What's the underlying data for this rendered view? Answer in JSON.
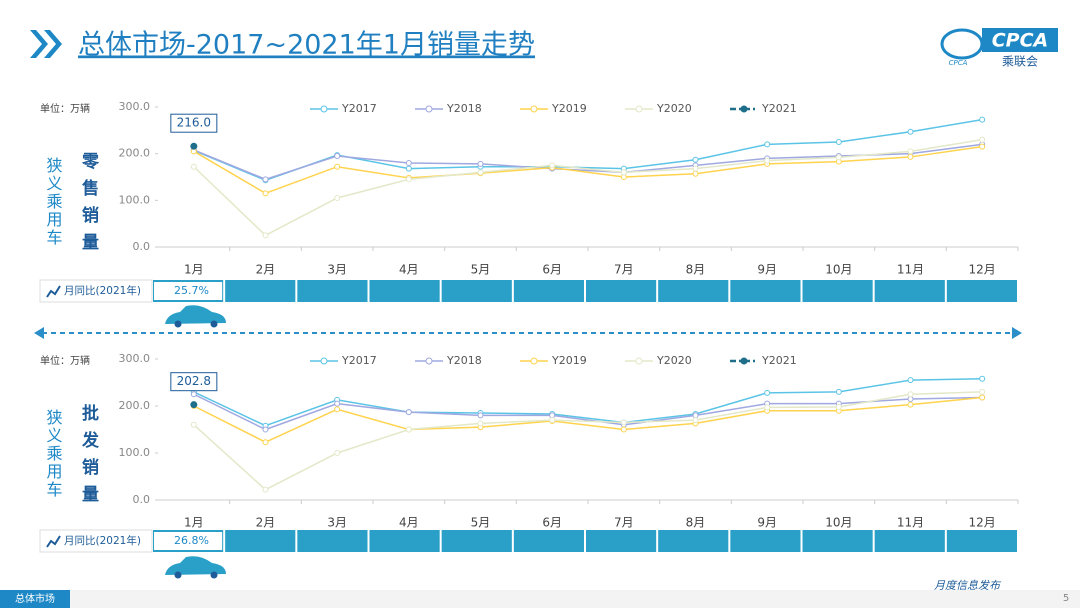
{
  "header": {
    "title": "总体市场-2017~2021年1月销量走势",
    "logo": "CPCA",
    "logo_sub": "乘联会",
    "logo_small": "CPCA"
  },
  "footer": {
    "tab": "总体市场",
    "note": "月度信息发布",
    "page": "5"
  },
  "chart_data": [
    {
      "type": "line",
      "unit": "单位：万辆",
      "side_label": "狭义乘用车",
      "metric_label": "零售销量",
      "yoy_label": "月同比(2021年)",
      "yoy_value": "25.7%",
      "categories": [
        "1月",
        "2月",
        "3月",
        "4月",
        "5月",
        "6月",
        "7月",
        "8月",
        "9月",
        "10月",
        "11月",
        "12月"
      ],
      "ylim": [
        0,
        300
      ],
      "yticks": [
        {
          "value": 0,
          "label": "0.0"
        },
        {
          "value": 100,
          "label": "100.0"
        },
        {
          "value": 200,
          "label": "200.0"
        },
        {
          "value": 300,
          "label": "300.0"
        }
      ],
      "legend": "top",
      "series": [
        {
          "name": "Y2017",
          "color": "#5bc4e6",
          "values": [
            207,
            143,
            197,
            168,
            172,
            172,
            168,
            187,
            220,
            225,
            247,
            273
          ]
        },
        {
          "name": "Y2018",
          "color": "#9fa8e0",
          "values": [
            208,
            145,
            195,
            180,
            178,
            168,
            160,
            175,
            190,
            195,
            200,
            220
          ]
        },
        {
          "name": "Y2019",
          "color": "#ffd34d",
          "values": [
            205,
            115,
            172,
            148,
            158,
            170,
            150,
            157,
            178,
            183,
            193,
            215
          ]
        },
        {
          "name": "Y2020",
          "color": "#e3e8c8",
          "values": [
            172,
            25,
            105,
            145,
            160,
            175,
            160,
            168,
            185,
            192,
            205,
            230
          ]
        },
        {
          "name": "Y2021",
          "color": "#1f6f8b",
          "dashed": true,
          "values": [
            216.0,
            null,
            null,
            null,
            null,
            null,
            null,
            null,
            null,
            null,
            null,
            null
          ],
          "value_labels": [
            "216.0",
            null,
            null,
            null,
            null,
            null,
            null,
            null,
            null,
            null,
            null,
            null
          ]
        }
      ]
    },
    {
      "type": "line",
      "unit": "单位：万辆",
      "side_label": "狭义乘用车",
      "metric_label": "批发销量",
      "yoy_label": "月同比(2021年)",
      "yoy_value": "26.8%",
      "categories": [
        "1月",
        "2月",
        "3月",
        "4月",
        "5月",
        "6月",
        "7月",
        "8月",
        "9月",
        "10月",
        "11月",
        "12月"
      ],
      "ylim": [
        0,
        300
      ],
      "yticks": [
        {
          "value": 0,
          "label": "0.0"
        },
        {
          "value": 100,
          "label": "100.0"
        },
        {
          "value": 200,
          "label": "200.0"
        },
        {
          "value": 300,
          "label": "300.0"
        }
      ],
      "legend": "top",
      "series": [
        {
          "name": "Y2017",
          "color": "#5bc4e6",
          "values": [
            230,
            158,
            213,
            187,
            185,
            183,
            165,
            183,
            228,
            230,
            255,
            258
          ]
        },
        {
          "name": "Y2018",
          "color": "#9fa8e0",
          "values": [
            225,
            150,
            205,
            187,
            180,
            180,
            160,
            180,
            205,
            205,
            215,
            218
          ]
        },
        {
          "name": "Y2019",
          "color": "#ffd34d",
          "values": [
            200,
            123,
            193,
            150,
            155,
            168,
            150,
            163,
            190,
            190,
            203,
            218
          ]
        },
        {
          "name": "Y2020",
          "color": "#e3e8c8",
          "values": [
            160,
            22,
            100,
            150,
            163,
            170,
            165,
            170,
            197,
            198,
            225,
            230
          ]
        },
        {
          "name": "Y2021",
          "color": "#1f6f8b",
          "dashed": true,
          "values": [
            202.8,
            null,
            null,
            null,
            null,
            null,
            null,
            null,
            null,
            null,
            null,
            null
          ],
          "value_labels": [
            "202.8",
            null,
            null,
            null,
            null,
            null,
            null,
            null,
            null,
            null,
            null,
            null
          ]
        }
      ]
    }
  ]
}
